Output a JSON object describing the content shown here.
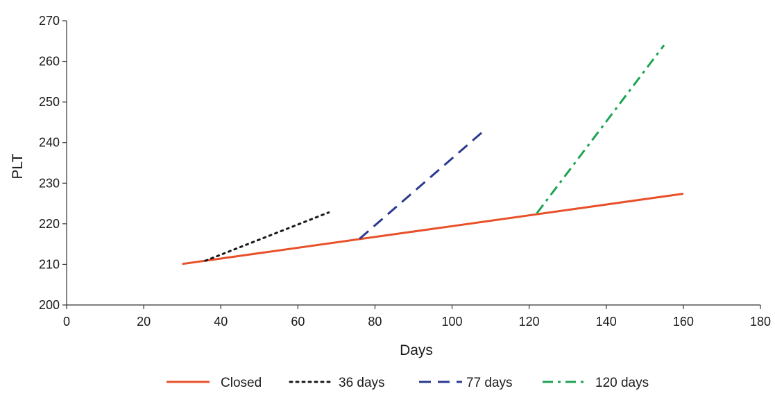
{
  "chart_data": {
    "type": "line",
    "xlabel": "Days",
    "ylabel": "PLT",
    "xlim": [
      0,
      180
    ],
    "ylim": [
      200,
      270
    ],
    "xticks": [
      0,
      20,
      40,
      60,
      80,
      100,
      120,
      140,
      160,
      180
    ],
    "yticks": [
      200,
      210,
      220,
      230,
      240,
      250,
      260,
      270
    ],
    "grid": false,
    "legend_position": "bottom",
    "series": [
      {
        "name": "Closed",
        "style": "solid",
        "color": "#e8502a",
        "x": [
          30,
          160
        ],
        "y": [
          210.1,
          227.4
        ]
      },
      {
        "name": "36 days",
        "style": "dotted",
        "color": "#1a1a1a",
        "x": [
          36,
          68
        ],
        "y": [
          210.9,
          222.8
        ]
      },
      {
        "name": "77 days",
        "style": "dashed",
        "color": "#2b3a8f",
        "x": [
          76,
          108
        ],
        "y": [
          216.3,
          242.7
        ]
      },
      {
        "name": "120 days",
        "style": "dashdot",
        "color": "#1ca352",
        "x": [
          122,
          155
        ],
        "y": [
          222.6,
          264.0
        ]
      }
    ]
  }
}
